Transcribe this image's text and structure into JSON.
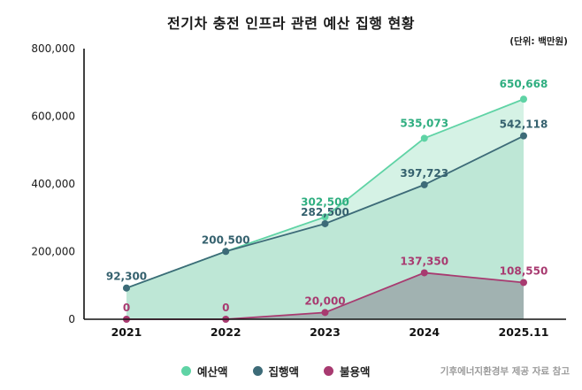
{
  "chart_data": {
    "type": "area",
    "title": "전기차 충전 인프라 관련 예산 집행 현황",
    "unit_note": "(단위: 백만원)",
    "source_note": "기후에너지환경부 제공 자료 참고",
    "categories": [
      "2021",
      "2022",
      "2023",
      "2024",
      "2025.11"
    ],
    "ylim": [
      0,
      800000
    ],
    "yticks": [
      "0",
      "200,000",
      "400,000",
      "600,000",
      "800,000"
    ],
    "grid": false,
    "legend_position": "bottom",
    "series": [
      {
        "key": "budget",
        "name": "예산액",
        "color": "#5fd3a5",
        "fill": "rgba(150,222,190,0.40)",
        "label_color": "#2fae80",
        "values": [
          92300,
          200500,
          302500,
          535073,
          650668
        ],
        "labels": [
          null,
          null,
          "302,500",
          "535,073",
          "650,668"
        ]
      },
      {
        "key": "execution",
        "name": "집행액",
        "color": "#3d6b78",
        "fill": "rgba(140,205,180,0.30)",
        "label_color": "#35616e",
        "values": [
          92300,
          200500,
          282500,
          397723,
          542118
        ],
        "labels": [
          "92,300",
          "200,500",
          "282,500",
          "397,723",
          "542,118"
        ]
      },
      {
        "key": "unused",
        "name": "불용액",
        "color": "#a83a70",
        "fill": "rgba(110,80,110,0.35)",
        "label_color": "#a83a70",
        "values": [
          0,
          0,
          20000,
          137350,
          108550
        ],
        "labels": [
          "0",
          "0",
          "20,000",
          "137,350",
          "108,550"
        ]
      }
    ]
  }
}
